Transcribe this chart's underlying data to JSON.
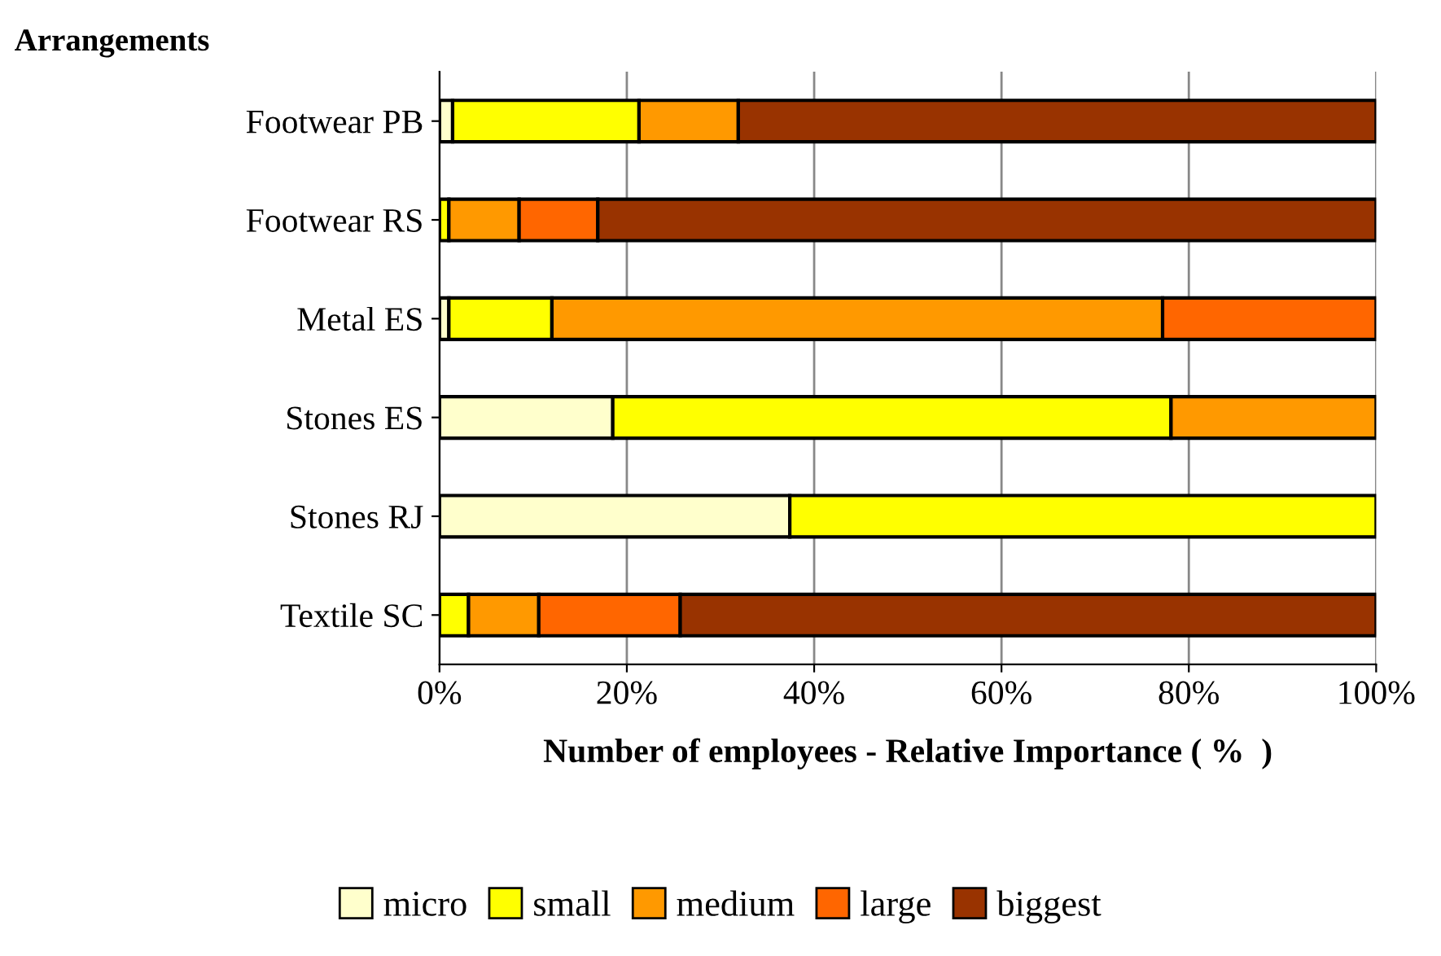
{
  "chart_data": {
    "type": "bar",
    "orientation": "horizontal",
    "stacked": true,
    "ylabel": "Arrangements",
    "xlabel": "Number of employees - Relative Importance ( %  )",
    "categories": [
      "Footwear PB",
      "Footwear RS",
      "Metal ES",
      "Stones ES",
      "Stones RJ",
      "Textile SC"
    ],
    "series": [
      {
        "name": "micro",
        "color": "#ffffcc",
        "values": [
          1.4,
          0,
          1.0,
          18.5,
          37.4,
          0
        ]
      },
      {
        "name": "small",
        "color": "#ffff00",
        "values": [
          19.9,
          1.0,
          11.0,
          59.6,
          62.6,
          3.1
        ]
      },
      {
        "name": "medium",
        "color": "#ff9900",
        "values": [
          10.6,
          7.5,
          65.2,
          21.9,
          0,
          7.5
        ]
      },
      {
        "name": "large",
        "color": "#ff6600",
        "values": [
          0,
          8.4,
          22.8,
          0,
          0,
          15.1
        ]
      },
      {
        "name": "biggest",
        "color": "#993300",
        "values": [
          68.1,
          83.1,
          0,
          0,
          0,
          74.3
        ]
      }
    ],
    "xlim": [
      0,
      100
    ],
    "xticks": [
      {
        "value": 0,
        "label": "0%"
      },
      {
        "value": 20,
        "label": "20%"
      },
      {
        "value": 40,
        "label": "40%"
      },
      {
        "value": 60,
        "label": "60%"
      },
      {
        "value": 80,
        "label": "80%"
      },
      {
        "value": 100,
        "label": "100%"
      }
    ],
    "grid": "x",
    "legend": "bottom"
  }
}
